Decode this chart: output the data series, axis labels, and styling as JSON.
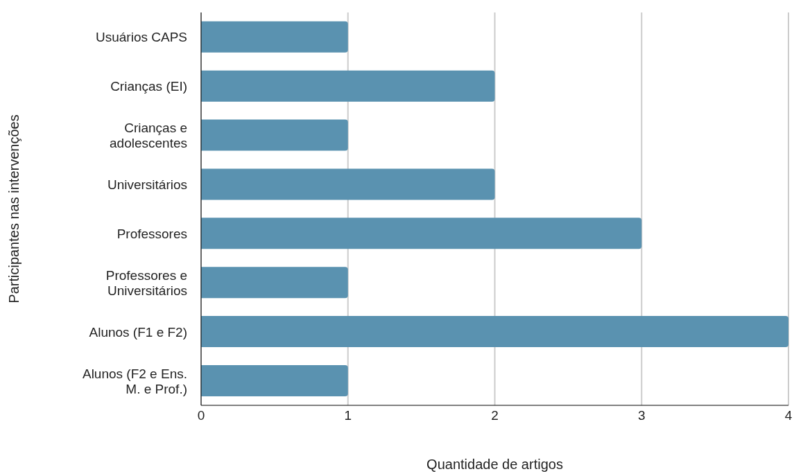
{
  "chart_data": {
    "type": "bar",
    "orientation": "horizontal",
    "xlabel": "Quantidade de artigos",
    "ylabel": "Participantes nas intervenções",
    "categories": [
      "Usuários CAPS",
      "Crianças (EI)",
      "Crianças e adolescentes",
      "Universitários",
      "Professores",
      "Professores e Universitários",
      "Alunos (F1 e F2)",
      "Alunos (F2 e Ens. M. e Prof.)"
    ],
    "values": [
      1,
      2,
      1,
      2,
      3,
      1,
      4,
      1
    ],
    "color": "#5a92b0",
    "xlim": [
      0,
      4
    ],
    "xticks": [
      0,
      1,
      2,
      3,
      4
    ],
    "grid": "x"
  }
}
